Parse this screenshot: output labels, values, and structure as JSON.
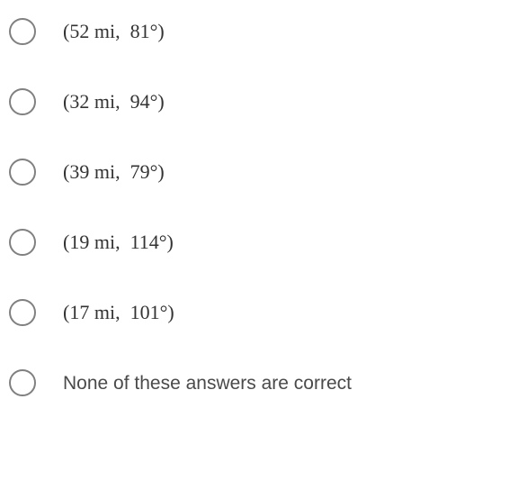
{
  "options": [
    {
      "distance": "52",
      "unit": "mi",
      "angle": "81",
      "is_math": true
    },
    {
      "distance": "32",
      "unit": "mi",
      "angle": "94",
      "is_math": true
    },
    {
      "distance": "39",
      "unit": "mi",
      "angle": "79",
      "is_math": true
    },
    {
      "distance": "19",
      "unit": "mi",
      "angle": "114",
      "is_math": true
    },
    {
      "distance": "17",
      "unit": "mi",
      "angle": "101",
      "is_math": true
    },
    {
      "text": "None of these answers are correct",
      "is_math": false
    }
  ],
  "colors": {
    "radio_border": "#808080",
    "text": "#333333",
    "background": "#ffffff"
  }
}
